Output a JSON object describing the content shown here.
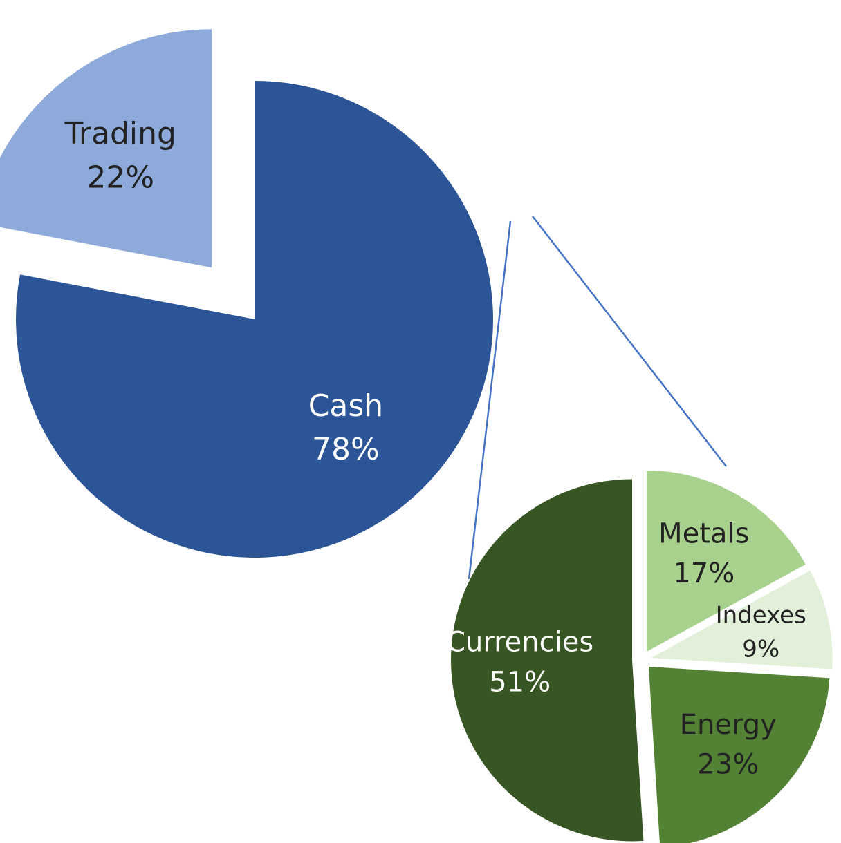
{
  "chart_data": [
    {
      "type": "pie",
      "categories": [
        "Cash",
        "Trading"
      ],
      "values": [
        78,
        22
      ],
      "value_labels": [
        "78%",
        "22%"
      ],
      "colors": [
        "#2c5597",
        "#8eaadb"
      ]
    },
    {
      "type": "pie",
      "categories": [
        "Metals",
        "Indexes",
        "Energy",
        "Currencies"
      ],
      "values": [
        17,
        9,
        23,
        51
      ],
      "value_labels": [
        "17%",
        "9%",
        "23%",
        "51%"
      ],
      "colors": [
        "#a9d18e",
        "#e2efd9",
        "#548235",
        "#375623"
      ]
    }
  ]
}
